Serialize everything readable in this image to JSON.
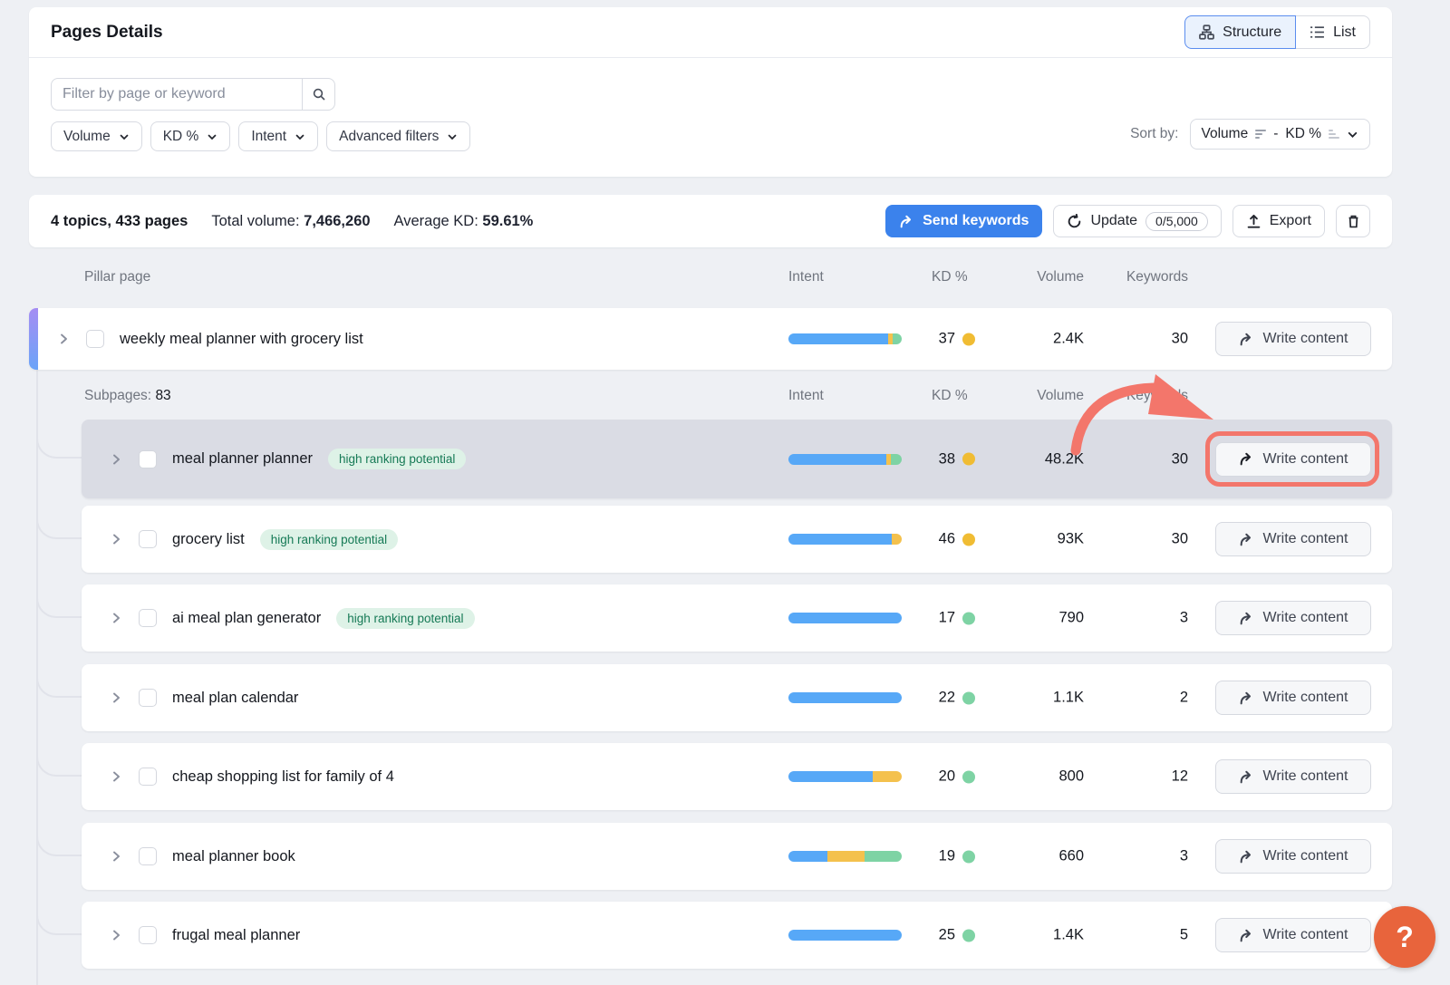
{
  "header": {
    "title": "Pages Details",
    "structure_label": "Structure",
    "list_label": "List"
  },
  "filters": {
    "search_placeholder": "Filter by page or keyword",
    "volume_chip": "Volume",
    "kd_chip": "KD %",
    "intent_chip": "Intent",
    "advanced_chip": "Advanced filters",
    "sort_by_label": "Sort by:",
    "sort_primary": "Volume",
    "sort_separator": "-",
    "sort_secondary": "KD %"
  },
  "summary": {
    "scope": "4 topics, 433 pages",
    "total_volume_label": "Total volume:",
    "total_volume_value": "7,466,260",
    "average_kd_label": "Average KD:",
    "average_kd_value": "59.61%",
    "send_keywords_label": "Send keywords",
    "update_label": "Update",
    "update_quota": "0/5,000",
    "export_label": "Export"
  },
  "table": {
    "columns": {
      "pillar": "Pillar page",
      "intent": "Intent",
      "kd": "KD %",
      "volume": "Volume",
      "keywords": "Keywords"
    },
    "write_content_label": "Write content",
    "subpages_label": "Subpages:",
    "subpages_count": "83",
    "pillar": {
      "title": "weekly meal planner with grocery list",
      "kd": "37",
      "kd_color": "yellow",
      "volume": "2.4K",
      "keywords": "30",
      "intent": [
        {
          "color": "blue",
          "pct": 88
        },
        {
          "color": "yellow",
          "pct": 4
        },
        {
          "color": "green",
          "pct": 8
        }
      ]
    },
    "rows": [
      {
        "title": "meal planner planner",
        "badge": "high ranking potential",
        "kd": "38",
        "kd_color": "yellow",
        "volume": "48.2K",
        "keywords": "30",
        "intent": [
          {
            "color": "blue",
            "pct": 86
          },
          {
            "color": "yellow",
            "pct": 4
          },
          {
            "color": "green",
            "pct": 10
          }
        ]
      },
      {
        "title": "grocery list",
        "badge": "high ranking potential",
        "kd": "46",
        "kd_color": "yellow",
        "volume": "93K",
        "keywords": "30",
        "intent": [
          {
            "color": "blue",
            "pct": 91
          },
          {
            "color": "yellow",
            "pct": 9
          }
        ]
      },
      {
        "title": "ai meal plan generator",
        "badge": "high ranking potential",
        "kd": "17",
        "kd_color": "green",
        "volume": "790",
        "keywords": "3",
        "intent": [
          {
            "color": "blue",
            "pct": 100
          }
        ]
      },
      {
        "title": "meal plan calendar",
        "badge": "",
        "kd": "22",
        "kd_color": "green",
        "volume": "1.1K",
        "keywords": "2",
        "intent": [
          {
            "color": "blue",
            "pct": 100
          }
        ]
      },
      {
        "title": "cheap shopping list for family of 4",
        "badge": "",
        "kd": "20",
        "kd_color": "green",
        "volume": "800",
        "keywords": "12",
        "intent": [
          {
            "color": "blue",
            "pct": 74
          },
          {
            "color": "yellow",
            "pct": 26
          }
        ]
      },
      {
        "title": "meal planner book",
        "badge": "",
        "kd": "19",
        "kd_color": "green",
        "volume": "660",
        "keywords": "3",
        "intent": [
          {
            "color": "blue",
            "pct": 34
          },
          {
            "color": "yellow",
            "pct": 33
          },
          {
            "color": "green",
            "pct": 33
          }
        ]
      },
      {
        "title": "frugal meal planner",
        "badge": "",
        "kd": "25",
        "kd_color": "green",
        "volume": "1.4K",
        "keywords": "5",
        "intent": [
          {
            "color": "blue",
            "pct": 100
          }
        ]
      }
    ]
  },
  "help": {
    "label": "?"
  },
  "colors": {
    "intent_blue": "#57a8f7",
    "intent_yellow": "#f4c14d",
    "intent_green": "#7ed3a4",
    "kd_yellow": "#f0bc33",
    "kd_green": "#7ed3a4",
    "accent_blue": "#3b82ec",
    "badge_bg": "#def2e7",
    "badge_text": "#167a56",
    "annotation": "#f3766b",
    "help_orange": "#e8643c",
    "highlight_row": "#dadce4"
  }
}
